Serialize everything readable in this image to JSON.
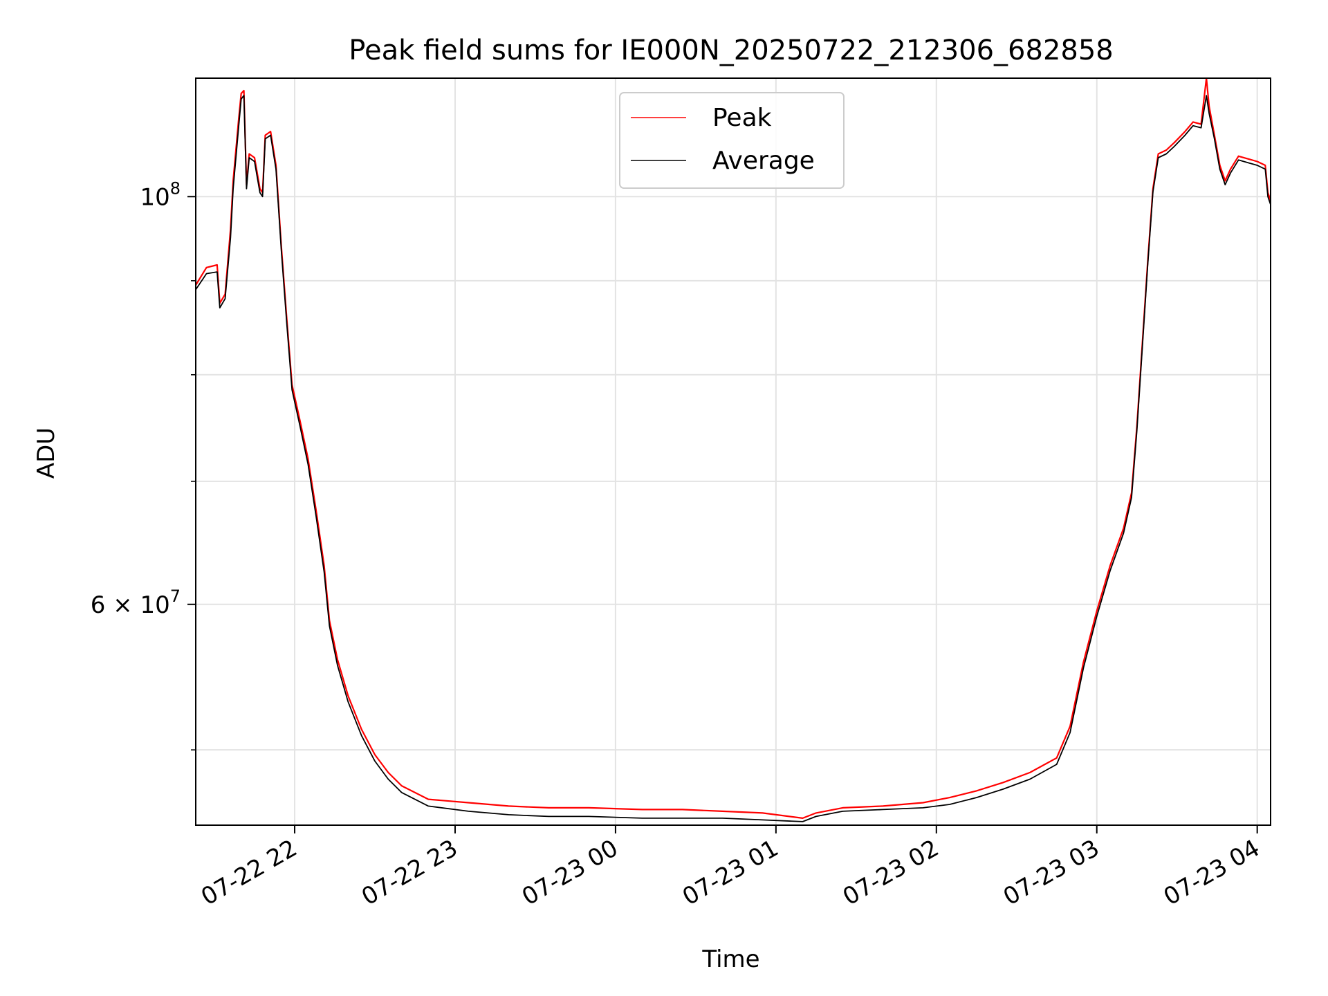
{
  "chart_data": {
    "type": "line",
    "title": "Peak field sums for IE000N_20250722_212306_682858",
    "xlabel": "Time",
    "ylabel": "ADU",
    "y_scale": "log",
    "ylim": [
      45500000,
      116000000
    ],
    "xlim": [
      "2025-07-22 21:23",
      "2025-07-23 04:05"
    ],
    "grid": true,
    "legend_position": "upper center",
    "x_ticks": [
      {
        "value": "2025-07-22 22:00",
        "label": "07-22 22"
      },
      {
        "value": "2025-07-22 23:00",
        "label": "07-22 23"
      },
      {
        "value": "2025-07-23 00:00",
        "label": "07-23 00"
      },
      {
        "value": "2025-07-23 01:00",
        "label": "07-23 01"
      },
      {
        "value": "2025-07-23 02:00",
        "label": "07-23 02"
      },
      {
        "value": "2025-07-23 03:00",
        "label": "07-23 03"
      },
      {
        "value": "2025-07-23 04:00",
        "label": "07-23 04"
      }
    ],
    "y_major_ticks": [
      {
        "value": 60000000,
        "label_base": "6 × 10",
        "label_exp": "7"
      },
      {
        "value": 100000000,
        "label_base": "10",
        "label_exp": "8"
      }
    ],
    "y_minor_ticks": [
      50000000,
      70000000,
      80000000,
      90000000
    ],
    "series": [
      {
        "name": "Peak",
        "color": "#ff0000",
        "points": [
          [
            "2025-07-22 21:23",
            89500000
          ],
          [
            "2025-07-22 21:27",
            91500000
          ],
          [
            "2025-07-22 21:31",
            91800000
          ],
          [
            "2025-07-22 21:32",
            87500000
          ],
          [
            "2025-07-22 21:34",
            88500000
          ],
          [
            "2025-07-22 21:36",
            96000000
          ],
          [
            "2025-07-22 21:37",
            102000000
          ],
          [
            "2025-07-22 21:39",
            110000000
          ],
          [
            "2025-07-22 21:40",
            113800000
          ],
          [
            "2025-07-22 21:41",
            114200000
          ],
          [
            "2025-07-22 21:42",
            101500000
          ],
          [
            "2025-07-22 21:43",
            105500000
          ],
          [
            "2025-07-22 21:45",
            105000000
          ],
          [
            "2025-07-22 21:47",
            101000000
          ],
          [
            "2025-07-22 21:48",
            100500000
          ],
          [
            "2025-07-22 21:49",
            108000000
          ],
          [
            "2025-07-22 21:51",
            108500000
          ],
          [
            "2025-07-22 21:53",
            104000000
          ],
          [
            "2025-07-22 21:55",
            94000000
          ],
          [
            "2025-07-22 21:57",
            86000000
          ],
          [
            "2025-07-22 21:59",
            79000000
          ],
          [
            "2025-07-22 22:02",
            75500000
          ],
          [
            "2025-07-22 22:05",
            72000000
          ],
          [
            "2025-07-22 22:08",
            67500000
          ],
          [
            "2025-07-22 22:11",
            63000000
          ],
          [
            "2025-07-22 22:13",
            58800000
          ],
          [
            "2025-07-22 22:16",
            56000000
          ],
          [
            "2025-07-22 22:20",
            53500000
          ],
          [
            "2025-07-22 22:25",
            51300000
          ],
          [
            "2025-07-22 22:30",
            49700000
          ],
          [
            "2025-07-22 22:35",
            48600000
          ],
          [
            "2025-07-22 22:40",
            47800000
          ],
          [
            "2025-07-22 22:50",
            47000000
          ],
          [
            "2025-07-22 23:05",
            46800000
          ],
          [
            "2025-07-22 23:20",
            46600000
          ],
          [
            "2025-07-22 23:35",
            46500000
          ],
          [
            "2025-07-22 23:50",
            46500000
          ],
          [
            "2025-07-23 00:10",
            46400000
          ],
          [
            "2025-07-23 00:25",
            46400000
          ],
          [
            "2025-07-23 00:40",
            46300000
          ],
          [
            "2025-07-23 00:55",
            46200000
          ],
          [
            "2025-07-23 01:10",
            45900000
          ],
          [
            "2025-07-23 01:15",
            46200000
          ],
          [
            "2025-07-23 01:25",
            46500000
          ],
          [
            "2025-07-23 01:40",
            46600000
          ],
          [
            "2025-07-23 01:55",
            46800000
          ],
          [
            "2025-07-23 02:05",
            47100000
          ],
          [
            "2025-07-23 02:15",
            47500000
          ],
          [
            "2025-07-23 02:25",
            48000000
          ],
          [
            "2025-07-23 02:35",
            48600000
          ],
          [
            "2025-07-23 02:45",
            49500000
          ],
          [
            "2025-07-23 02:50",
            51500000
          ],
          [
            "2025-07-23 02:55",
            55800000
          ],
          [
            "2025-07-23 03:00",
            59500000
          ],
          [
            "2025-07-23 03:05",
            63000000
          ],
          [
            "2025-07-23 03:10",
            66000000
          ],
          [
            "2025-07-23 03:13",
            69000000
          ],
          [
            "2025-07-23 03:15",
            75000000
          ],
          [
            "2025-07-23 03:17",
            83000000
          ],
          [
            "2025-07-23 03:19",
            92000000
          ],
          [
            "2025-07-23 03:21",
            101000000
          ],
          [
            "2025-07-23 03:23",
            105500000
          ],
          [
            "2025-07-23 03:26",
            106000000
          ],
          [
            "2025-07-23 03:29",
            107000000
          ],
          [
            "2025-07-23 03:33",
            108500000
          ],
          [
            "2025-07-23 03:36",
            109800000
          ],
          [
            "2025-07-23 03:39",
            109500000
          ],
          [
            "2025-07-23 03:41",
            116000000
          ],
          [
            "2025-07-23 03:42",
            112000000
          ],
          [
            "2025-07-23 03:44",
            108000000
          ],
          [
            "2025-07-23 03:46",
            104000000
          ],
          [
            "2025-07-23 03:48",
            102000000
          ],
          [
            "2025-07-23 03:50",
            103500000
          ],
          [
            "2025-07-23 03:53",
            105200000
          ],
          [
            "2025-07-23 03:57",
            104800000
          ],
          [
            "2025-07-23 04:00",
            104500000
          ],
          [
            "2025-07-23 04:03",
            104000000
          ],
          [
            "2025-07-23 04:04",
            100500000
          ],
          [
            "2025-07-23 04:05",
            99500000
          ]
        ]
      },
      {
        "name": "Average",
        "color": "#000000",
        "points": [
          [
            "2025-07-22 21:23",
            89000000
          ],
          [
            "2025-07-22 21:27",
            90800000
          ],
          [
            "2025-07-22 21:31",
            91000000
          ],
          [
            "2025-07-22 21:32",
            87000000
          ],
          [
            "2025-07-22 21:34",
            88000000
          ],
          [
            "2025-07-22 21:36",
            95000000
          ],
          [
            "2025-07-22 21:37",
            101000000
          ],
          [
            "2025-07-22 21:39",
            109000000
          ],
          [
            "2025-07-22 21:40",
            113000000
          ],
          [
            "2025-07-22 21:41",
            113500000
          ],
          [
            "2025-07-22 21:42",
            101000000
          ],
          [
            "2025-07-22 21:43",
            105000000
          ],
          [
            "2025-07-22 21:45",
            104500000
          ],
          [
            "2025-07-22 21:47",
            100500000
          ],
          [
            "2025-07-22 21:48",
            100000000
          ],
          [
            "2025-07-22 21:49",
            107500000
          ],
          [
            "2025-07-22 21:51",
            108000000
          ],
          [
            "2025-07-22 21:53",
            103500000
          ],
          [
            "2025-07-22 21:55",
            93500000
          ],
          [
            "2025-07-22 21:57",
            85500000
          ],
          [
            "2025-07-22 21:59",
            78500000
          ],
          [
            "2025-07-22 22:02",
            75000000
          ],
          [
            "2025-07-22 22:05",
            71500000
          ],
          [
            "2025-07-22 22:08",
            67000000
          ],
          [
            "2025-07-22 22:11",
            62500000
          ],
          [
            "2025-07-22 22:13",
            58400000
          ],
          [
            "2025-07-22 22:16",
            55600000
          ],
          [
            "2025-07-22 22:20",
            53100000
          ],
          [
            "2025-07-22 22:25",
            50900000
          ],
          [
            "2025-07-22 22:30",
            49300000
          ],
          [
            "2025-07-22 22:35",
            48200000
          ],
          [
            "2025-07-22 22:40",
            47400000
          ],
          [
            "2025-07-22 22:50",
            46600000
          ],
          [
            "2025-07-22 23:05",
            46300000
          ],
          [
            "2025-07-22 23:20",
            46100000
          ],
          [
            "2025-07-22 23:35",
            46000000
          ],
          [
            "2025-07-22 23:50",
            46000000
          ],
          [
            "2025-07-23 00:10",
            45900000
          ],
          [
            "2025-07-23 00:25",
            45900000
          ],
          [
            "2025-07-23 00:40",
            45900000
          ],
          [
            "2025-07-23 00:55",
            45800000
          ],
          [
            "2025-07-23 01:10",
            45700000
          ],
          [
            "2025-07-23 01:15",
            46000000
          ],
          [
            "2025-07-23 01:25",
            46300000
          ],
          [
            "2025-07-23 01:40",
            46400000
          ],
          [
            "2025-07-23 01:55",
            46500000
          ],
          [
            "2025-07-23 02:05",
            46700000
          ],
          [
            "2025-07-23 02:15",
            47100000
          ],
          [
            "2025-07-23 02:25",
            47600000
          ],
          [
            "2025-07-23 02:35",
            48200000
          ],
          [
            "2025-07-23 02:45",
            49100000
          ],
          [
            "2025-07-23 02:50",
            51100000
          ],
          [
            "2025-07-23 02:55",
            55400000
          ],
          [
            "2025-07-23 03:00",
            59100000
          ],
          [
            "2025-07-23 03:05",
            62600000
          ],
          [
            "2025-07-23 03:10",
            65600000
          ],
          [
            "2025-07-23 03:13",
            68600000
          ],
          [
            "2025-07-23 03:15",
            74600000
          ],
          [
            "2025-07-23 03:17",
            82600000
          ],
          [
            "2025-07-23 03:19",
            91600000
          ],
          [
            "2025-07-23 03:21",
            100600000
          ],
          [
            "2025-07-23 03:23",
            105000000
          ],
          [
            "2025-07-23 03:26",
            105500000
          ],
          [
            "2025-07-23 03:29",
            106500000
          ],
          [
            "2025-07-23 03:33",
            108000000
          ],
          [
            "2025-07-23 03:36",
            109300000
          ],
          [
            "2025-07-23 03:39",
            109000000
          ],
          [
            "2025-07-23 03:41",
            113500000
          ],
          [
            "2025-07-23 03:42",
            111000000
          ],
          [
            "2025-07-23 03:44",
            107500000
          ],
          [
            "2025-07-23 03:46",
            103500000
          ],
          [
            "2025-07-23 03:48",
            101500000
          ],
          [
            "2025-07-23 03:50",
            103000000
          ],
          [
            "2025-07-23 03:53",
            104700000
          ],
          [
            "2025-07-23 03:57",
            104300000
          ],
          [
            "2025-07-23 04:00",
            104000000
          ],
          [
            "2025-07-23 04:03",
            103500000
          ],
          [
            "2025-07-23 04:04",
            100000000
          ],
          [
            "2025-07-23 04:05",
            99000000
          ]
        ]
      }
    ]
  }
}
